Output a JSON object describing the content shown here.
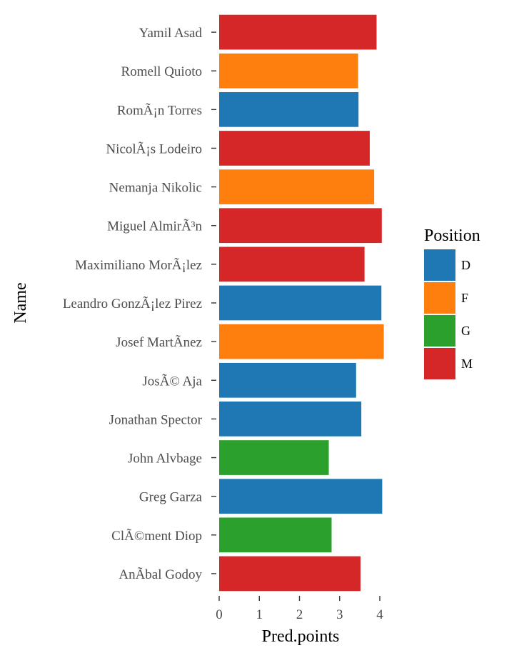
{
  "chart_data": {
    "type": "bar",
    "orientation": "horizontal",
    "xlabel": "Pred.points",
    "ylabel": "Name",
    "xlim": [
      0,
      4.2
    ],
    "x_ticks": [
      "0",
      "1",
      "2",
      "3",
      "4"
    ],
    "grid": false,
    "legend": {
      "title": "Position",
      "placement": "right",
      "entries": [
        {
          "label": "D",
          "color": "#1f77b4"
        },
        {
          "label": "F",
          "color": "#ff7f0e"
        },
        {
          "label": "G",
          "color": "#2ca02c"
        },
        {
          "label": "M",
          "color": "#d62728"
        }
      ]
    },
    "categories": [
      "Yamil Asad",
      "Romell Quioto",
      "RomÃ¡n Torres",
      "NicolÃ¡s Lodeiro",
      "Nemanja Nikolic",
      "Miguel AlmirÃ³n",
      "Maximiliano MorÃ¡lez",
      "Leandro GonzÃ¡lez Pirez",
      "Josef MartÃ­nez",
      "JosÃ© Aja",
      "Jonathan Spector",
      "John Alvbage",
      "Greg Garza",
      "ClÃ©ment Diop",
      "AnÃ­bal Godoy"
    ],
    "values": [
      3.92,
      3.46,
      3.47,
      3.75,
      3.86,
      4.05,
      3.62,
      4.04,
      4.1,
      3.41,
      3.54,
      2.73,
      4.06,
      2.8,
      3.52
    ],
    "positions": [
      "M",
      "F",
      "D",
      "M",
      "F",
      "M",
      "M",
      "D",
      "F",
      "D",
      "D",
      "G",
      "D",
      "G",
      "M"
    ]
  }
}
